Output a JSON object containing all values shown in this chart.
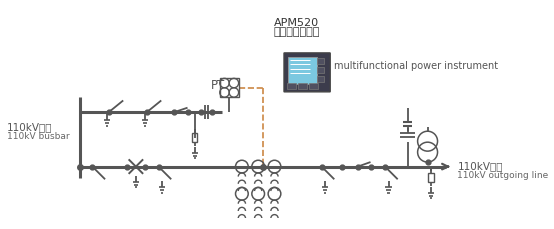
{
  "bg_color": "#ffffff",
  "line_color": "#555555",
  "orange_dash_color": "#cc8844",
  "title_line1": "APM520",
  "title_line2": "多功能电力仪表",
  "title_en": "multifunctional power instrument",
  "busbar_cn": "110kV母线",
  "busbar_en": "110kV busbar",
  "outgoing_cn": "110kV出线",
  "outgoing_en": "110kV outgoing line",
  "pt_label": "PT",
  "figsize": [
    5.54,
    2.29
  ],
  "dpi": 100
}
